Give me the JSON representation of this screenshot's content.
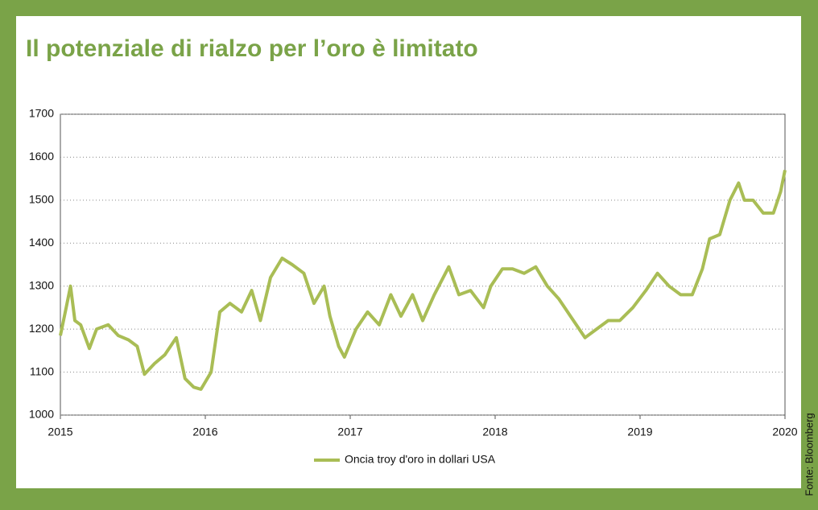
{
  "chart_data": {
    "type": "line",
    "title": "Il potenziale di rialzo per l’oro è limitato",
    "source": "Fonte: Bloomberg",
    "x": [
      2015.0,
      2015.04,
      2015.07,
      2015.1,
      2015.14,
      2015.2,
      2015.25,
      2015.33,
      2015.4,
      2015.47,
      2015.53,
      2015.58,
      2015.65,
      2015.72,
      2015.8,
      2015.86,
      2015.92,
      2015.97,
      2016.04,
      2016.1,
      2016.17,
      2016.25,
      2016.32,
      2016.38,
      2016.45,
      2016.53,
      2016.6,
      2016.68,
      2016.75,
      2016.82,
      2016.86,
      2016.92,
      2016.96,
      2017.04,
      2017.12,
      2017.2,
      2017.28,
      2017.35,
      2017.43,
      2017.5,
      2017.58,
      2017.68,
      2017.75,
      2017.83,
      2017.92,
      2017.97,
      2018.05,
      2018.12,
      2018.2,
      2018.28,
      2018.36,
      2018.44,
      2018.52,
      2018.62,
      2018.7,
      2018.78,
      2018.86,
      2018.95,
      2019.04,
      2019.12,
      2019.2,
      2019.28,
      2019.36,
      2019.43,
      2019.48,
      2019.55,
      2019.62,
      2019.68,
      2019.72,
      2019.78,
      2019.85,
      2019.92,
      2019.97,
      2020.0
    ],
    "series": [
      {
        "name": "Oncia troy d'oro in dollari USA",
        "color": "#a9bd55",
        "values": [
          1185,
          1250,
          1300,
          1220,
          1210,
          1155,
          1200,
          1210,
          1185,
          1175,
          1160,
          1095,
          1120,
          1140,
          1180,
          1085,
          1065,
          1060,
          1100,
          1240,
          1260,
          1240,
          1290,
          1220,
          1320,
          1365,
          1350,
          1330,
          1260,
          1300,
          1230,
          1160,
          1135,
          1200,
          1240,
          1210,
          1280,
          1230,
          1280,
          1220,
          1280,
          1345,
          1280,
          1290,
          1250,
          1300,
          1340,
          1340,
          1330,
          1345,
          1300,
          1270,
          1230,
          1180,
          1200,
          1220,
          1220,
          1250,
          1290,
          1330,
          1300,
          1280,
          1280,
          1340,
          1410,
          1420,
          1500,
          1540,
          1500,
          1500,
          1470,
          1470,
          1520,
          1570
        ]
      }
    ],
    "xlim": [
      2015,
      2020
    ],
    "xticks": [
      2015,
      2016,
      2017,
      2018,
      2019,
      2020
    ],
    "ylim": [
      1000,
      1700
    ],
    "yticks": [
      1000,
      1100,
      1200,
      1300,
      1400,
      1500,
      1600,
      1700
    ],
    "grid": true
  }
}
